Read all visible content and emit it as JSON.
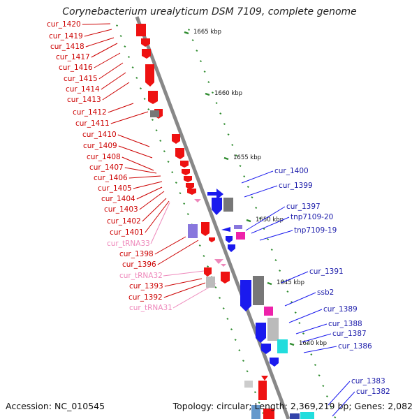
{
  "title": "Corynebacterium urealyticum DSM 7109, complete genome",
  "footer": {
    "accession": "Accession: NC_010545",
    "stats": "Topology: circular; Length: 2,369,219 bp; Genes: 2,082"
  },
  "colors": {
    "minus_strand": "#ee1111",
    "plus_strand": "#1a1aee",
    "trna": "#ee88bb",
    "backbone": "#888888",
    "ticks": "#2e8b2e",
    "neutral_gene": "#777777",
    "cyan_gene": "#22dddd",
    "magenta_gene": "#ee22aa",
    "purple_gene": "#8877dd"
  },
  "scale_labels": [
    "1665 kbp",
    "1660 kbp",
    "1655 kbp",
    "1650 kbp",
    "1645 kbp",
    "1640 kbp"
  ],
  "left_genes": [
    "cur_1420",
    "cur_1419",
    "cur_1418",
    "cur_1417",
    "cur_1416",
    "cur_1415",
    "cur_1414",
    "cur_1413",
    "cur_1412",
    "cur_1411",
    "cur_1410",
    "cur_1409",
    "cur_1408",
    "cur_1407",
    "cur_1406",
    "cur_1405",
    "cur_1404",
    "cur_1403",
    "cur_1402",
    "cur_1401",
    "cur_tRNA33",
    "cur_1398",
    "cur_1396",
    "cur_tRNA32",
    "cur_1393",
    "cur_1392",
    "cur_tRNA31"
  ],
  "right_genes": [
    "cur_1400",
    "cur_1399",
    "cur_1397",
    "tnp7109-20",
    "tnp7109-19",
    "cur_1391",
    "ssb2",
    "cur_1389",
    "cur_1388",
    "cur_1387",
    "cur_1386",
    "cur_1383",
    "cur_1382"
  ]
}
